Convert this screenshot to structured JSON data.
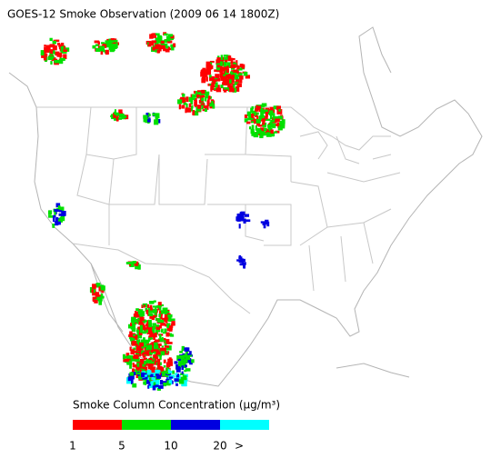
{
  "title": "GOES-12 Smoke Observation (2009 06 14  1800Z)",
  "legend": {
    "label": "Smoke Column Concentration (μg/m³)",
    "colors": [
      "#ff0000",
      "#00e000",
      "#0000e0",
      "#00ffff"
    ],
    "ticks": [
      "1",
      "5",
      "10",
      "20",
      ">"
    ]
  }
}
